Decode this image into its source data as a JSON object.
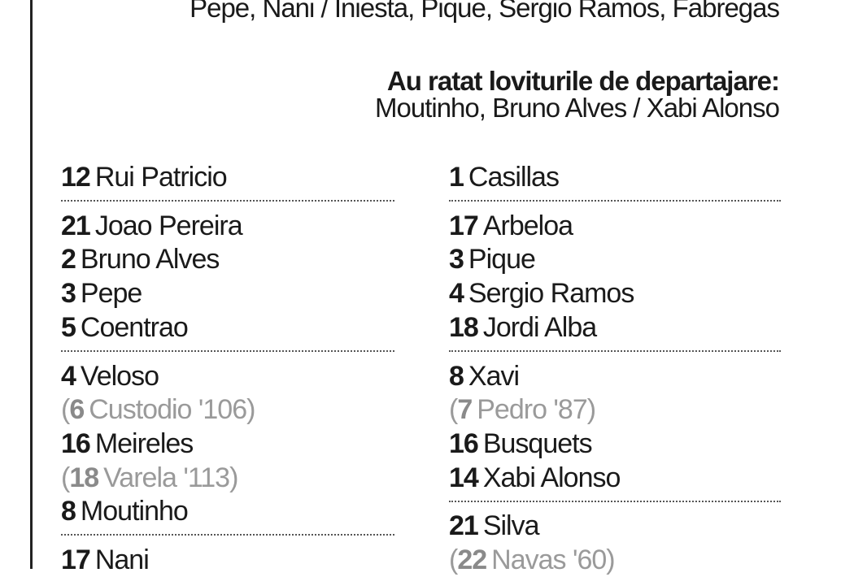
{
  "header": {
    "scorers_tail": "Pepe, Nani / Iniesta, Pique, Sergio Ramos, Fabregas",
    "missed_title": "Au ratat loviturile de departajare:",
    "missed_players": "Moutinho, Bruno Alves / Xabi Alonso"
  },
  "lineups": [
    {
      "groups": [
        {
          "rows": [
            {
              "number": 12,
              "name": "Rui Patricio"
            }
          ]
        },
        {
          "rows": [
            {
              "number": 21,
              "name": "Joao Pereira"
            },
            {
              "number": 2,
              "name": "Bruno Alves"
            },
            {
              "number": 3,
              "name": "Pepe"
            },
            {
              "number": 5,
              "name": "Coentrao"
            }
          ]
        },
        {
          "rows": [
            {
              "number": 4,
              "name": "Veloso"
            },
            {
              "open": "(",
              "number": 6,
              "name": "Custodio '106",
              "close": ")"
            },
            {
              "number": 16,
              "name": "Meireles"
            },
            {
              "open": "(",
              "number": 18,
              "name": "Varela '113",
              "close": ")"
            },
            {
              "number": 8,
              "name": "Moutinho"
            }
          ]
        },
        {
          "rows": [
            {
              "number": 17,
              "name": "Nani"
            }
          ]
        }
      ]
    },
    {
      "groups": [
        {
          "rows": [
            {
              "number": 1,
              "name": "Casillas"
            }
          ]
        },
        {
          "rows": [
            {
              "number": 17,
              "name": "Arbeloa"
            },
            {
              "number": 3,
              "name": "Pique"
            },
            {
              "number": 4,
              "name": "Sergio Ramos"
            },
            {
              "number": 18,
              "name": "Jordi Alba"
            }
          ]
        },
        {
          "rows": [
            {
              "number": 8,
              "name": "Xavi"
            },
            {
              "open": "(",
              "number": 7,
              "name": "Pedro '87",
              "close": ")"
            },
            {
              "number": 16,
              "name": "Busquets"
            },
            {
              "number": 14,
              "name": "Xabi Alonso"
            }
          ]
        },
        {
          "rows": [
            {
              "number": 21,
              "name": "Silva"
            },
            {
              "open": "(",
              "number": 22,
              "name": "Navas '60",
              "close": ")"
            }
          ]
        }
      ]
    }
  ]
}
